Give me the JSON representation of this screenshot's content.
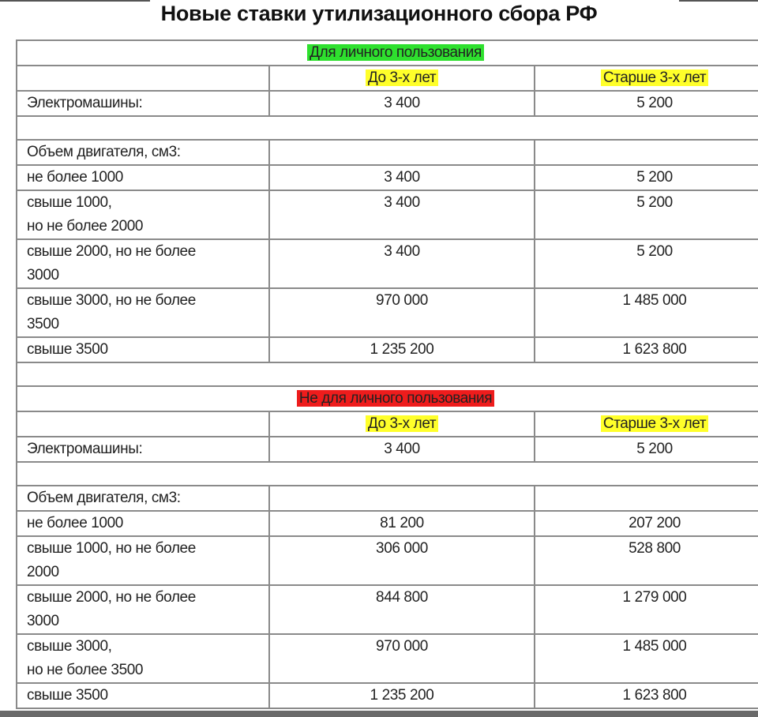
{
  "title": "Новые ставки утилизационного сбора РФ",
  "colors": {
    "personal_highlight": "#2ee02e",
    "commercial_highlight": "#ee1c1c",
    "column_highlight": "#ffff2a"
  },
  "sections": [
    {
      "heading": "Для личного пользования",
      "highlight": "green",
      "columns": [
        "До 3-х лет",
        "Старше 3-х лет"
      ],
      "electric": {
        "label": "Электромашины:",
        "values": [
          "3 400",
          "5 200"
        ]
      },
      "engine_label": "Объем двигателя, см3:",
      "rows": [
        {
          "label": [
            "не более 1000"
          ],
          "values": [
            "3 400",
            "5 200"
          ]
        },
        {
          "label": [
            "свыше 1000,",
            "но не более 2000"
          ],
          "values": [
            "3 400",
            "5 200"
          ]
        },
        {
          "label": [
            "свыше 2000, но не более",
            "3000"
          ],
          "values": [
            "3 400",
            "5 200"
          ]
        },
        {
          "label": [
            "свыше 3000, но не более",
            "3500"
          ],
          "values": [
            "970 000",
            "1 485 000"
          ]
        },
        {
          "label": [
            "свыше 3500"
          ],
          "values": [
            "1 235 200",
            "1 623 800"
          ]
        }
      ]
    },
    {
      "heading": "Не для личного пользования",
      "highlight": "red",
      "columns": [
        "До 3-х лет",
        "Старше 3-х лет"
      ],
      "electric": {
        "label": "Электромашины:",
        "values": [
          "3 400",
          "5 200"
        ]
      },
      "engine_label": "Объем двигателя, см3:",
      "rows": [
        {
          "label": [
            "не более 1000"
          ],
          "values": [
            "81 200",
            "207 200"
          ]
        },
        {
          "label": [
            "свыше 1000, но не более",
            "2000"
          ],
          "values": [
            "306 000",
            "528 800"
          ]
        },
        {
          "label": [
            "свыше 2000, но не более",
            "3000"
          ],
          "values": [
            "844 800",
            "1 279 000"
          ]
        },
        {
          "label": [
            "свыше 3000,",
            "но не более 3500"
          ],
          "values": [
            "970 000",
            "1 485 000"
          ]
        },
        {
          "label": [
            "свыше 3500"
          ],
          "values": [
            "1 235 200",
            "1 623 800"
          ]
        }
      ]
    }
  ]
}
